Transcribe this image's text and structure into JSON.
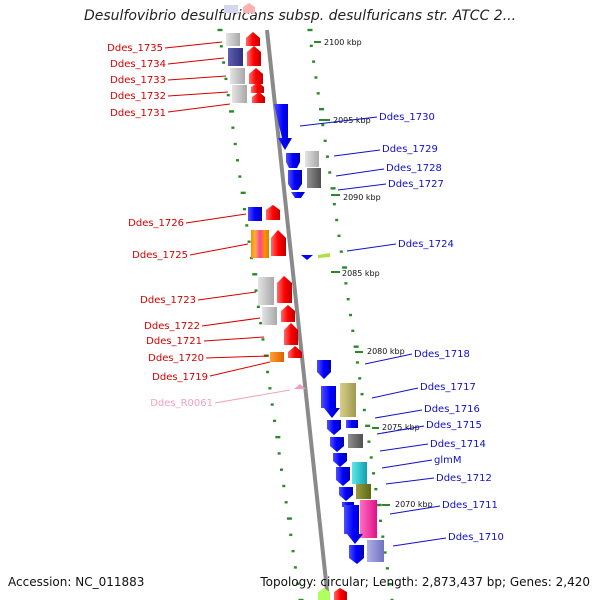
{
  "title": "Desulfovibrio desulfuricans subsp. desulfuricans str. ATCC 2...",
  "footer": {
    "accession": "Accession: NC_011883",
    "stats": "Topology: circular; Length: 2,873,437 bp; Genes: 2,420"
  },
  "ruler": [
    {
      "label": "2100 kbp"
    },
    {
      "label": "2095 kbp"
    },
    {
      "label": "2090 kbp"
    },
    {
      "label": "2085 kbp"
    },
    {
      "label": "2080 kbp"
    },
    {
      "label": "2075 kbp"
    },
    {
      "label": "2070 kbp"
    }
  ],
  "left_labels": [
    {
      "text": "Ddes_1735",
      "color": "#d40000"
    },
    {
      "text": "Ddes_1734",
      "color": "#d40000"
    },
    {
      "text": "Ddes_1733",
      "color": "#d40000"
    },
    {
      "text": "Ddes_1732",
      "color": "#d40000"
    },
    {
      "text": "Ddes_1731",
      "color": "#d40000"
    },
    {
      "text": "Ddes_1726",
      "color": "#d40000"
    },
    {
      "text": "Ddes_1725",
      "color": "#d40000"
    },
    {
      "text": "Ddes_1723",
      "color": "#d40000"
    },
    {
      "text": "Ddes_1722",
      "color": "#d40000"
    },
    {
      "text": "Ddes_1721",
      "color": "#d40000"
    },
    {
      "text": "Ddes_1720",
      "color": "#d40000"
    },
    {
      "text": "Ddes_1719",
      "color": "#d40000"
    },
    {
      "text": "Ddes_R0061",
      "color": "#f4a0c0"
    }
  ],
  "right_labels": [
    {
      "text": "Ddes_1730",
      "color": "#1010c8"
    },
    {
      "text": "Ddes_1729",
      "color": "#1010c8"
    },
    {
      "text": "Ddes_1728",
      "color": "#1010c8"
    },
    {
      "text": "Ddes_1727",
      "color": "#1010c8"
    },
    {
      "text": "Ddes_1724",
      "color": "#1010c8"
    },
    {
      "text": "Ddes_1718",
      "color": "#1010c8"
    },
    {
      "text": "Ddes_1717",
      "color": "#1010c8"
    },
    {
      "text": "Ddes_1716",
      "color": "#1010c8"
    },
    {
      "text": "Ddes_1715",
      "color": "#1010c8"
    },
    {
      "text": "Ddes_1714",
      "color": "#1010c8"
    },
    {
      "text": "glmM",
      "color": "#1010c8"
    },
    {
      "text": "Ddes_1712",
      "color": "#1010c8"
    },
    {
      "text": "Ddes_1711",
      "color": "#1010c8"
    },
    {
      "text": "Ddes_1710",
      "color": "#1010c8"
    }
  ],
  "colors": {
    "forward_strand": "#ff0000",
    "reverse_strand": "#0000ff",
    "backbone": "#8a8a8a",
    "ruler_dots": "#2a8a2a",
    "rna": "#f4a0c0"
  }
}
